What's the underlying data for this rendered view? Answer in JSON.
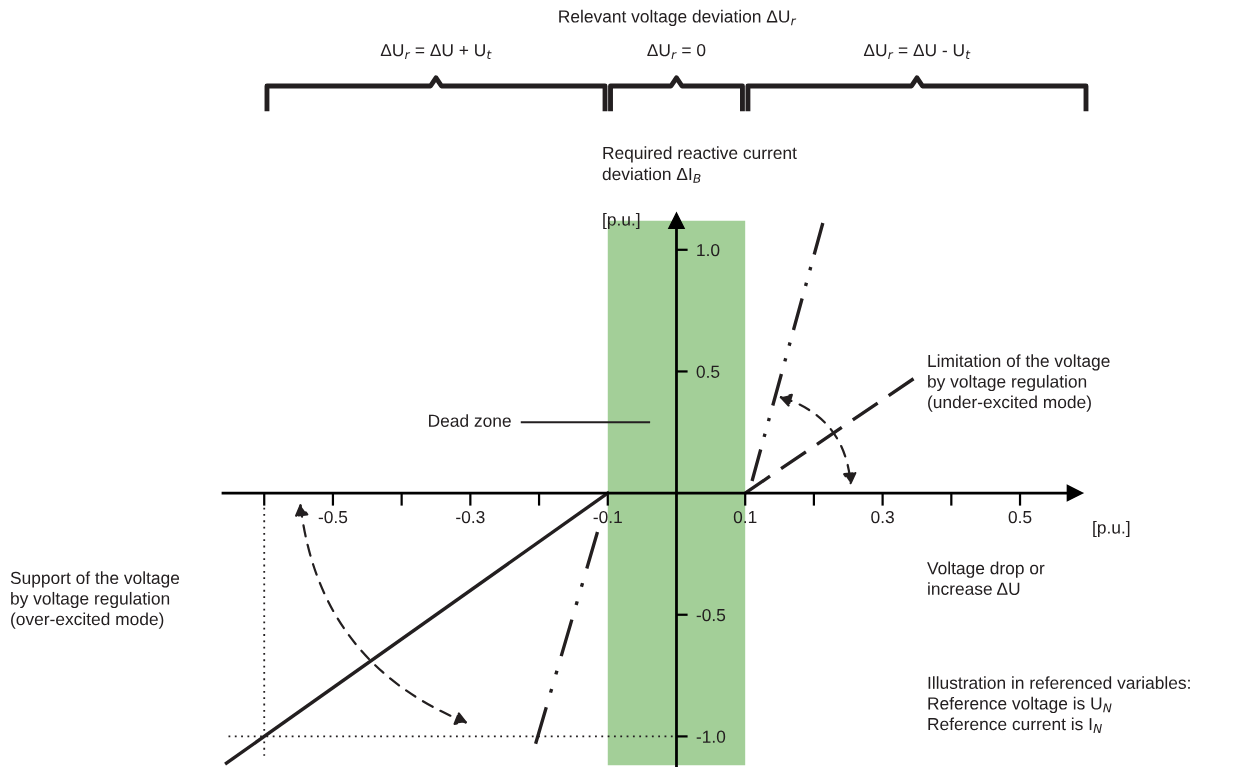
{
  "chart_data": {
    "type": "line",
    "title": "Relevant voltage deviation ΔU$_{r}$",
    "xlabel": "Voltage drop or\nincrease ΔU",
    "ylabel": "Required reactive current\ndeviation ΔI$_{B}$",
    "annotations": [
      "Support of the voltage\nby voltage regulation\n(over-excited mode)",
      "ΔU$_{r}$ = ΔU + U$_{t}$",
      "ΔU$_{r}$ = 0",
      "ΔU$_{r}$ = ΔU - U$_{t}$",
      "[p.u.]",
      "[p.u.]",
      "Illustration in referenced variables:\nReference voltage is U$_{N}$\nReference current is I$_{N}$"
    ],
    "series": [
      {
        "color": "#231f20",
        "line_style": "solid",
        "x": [
          -0.655,
          -0.1
        ],
        "values": [
          -1.11,
          0
        ]
      },
      {
        "name": "Limitation of the voltage\nby voltage regulation\n(under-excited mode)",
        "color": "#231f20",
        "line_style": "dashed",
        "x": [
          0.1,
          0.345
        ],
        "values": [
          0,
          0.47
        ]
      },
      {
        "color": "#231f20",
        "line_style": "dashdot",
        "x": [
          -0.205,
          -0.115
        ],
        "values": [
          -1.03,
          -0.16
        ]
      },
      {
        "color": "#231f20",
        "line_style": "dashdot",
        "x": [
          0.11,
          0.213
        ],
        "values": [
          0.05,
          1.11
        ]
      },
      {
        "color": "#231f20",
        "line_style": "dotted",
        "x": [
          -0.652,
          0
        ],
        "values": [
          -1.0,
          -1.0
        ]
      },
      {
        "color": "#231f20",
        "line_style": "dotted",
        "x": [
          -0.6,
          -0.6
        ],
        "values": [
          -0.06,
          -1.08
        ]
      }
    ],
    "bands": [
      {
        "axis": "x",
        "from": -0.1,
        "to": 0.1,
        "label": "Dead zone",
        "color": "#a3cf98"
      }
    ],
    "xlim": [
      -0.66,
      0.58
    ],
    "ylim": [
      -1.12,
      1.12
    ],
    "xticks": [
      {
        "value": -0.6,
        "label": null
      },
      -0.5,
      {
        "value": -0.4,
        "label": null
      },
      -0.3,
      {
        "value": -0.2,
        "label": null
      },
      -0.1,
      0.1,
      {
        "value": 0.2,
        "label": null
      },
      0.3,
      {
        "value": 0.4,
        "label": null
      },
      0.5
    ],
    "yticks": [
      {
        "value": 1.0,
        "label": "1.0"
      },
      0.5,
      -0.5,
      {
        "value": -1.0,
        "label": "-1.0"
      }
    ],
    "grid": false,
    "legend": false,
    "marker": "none"
  }
}
